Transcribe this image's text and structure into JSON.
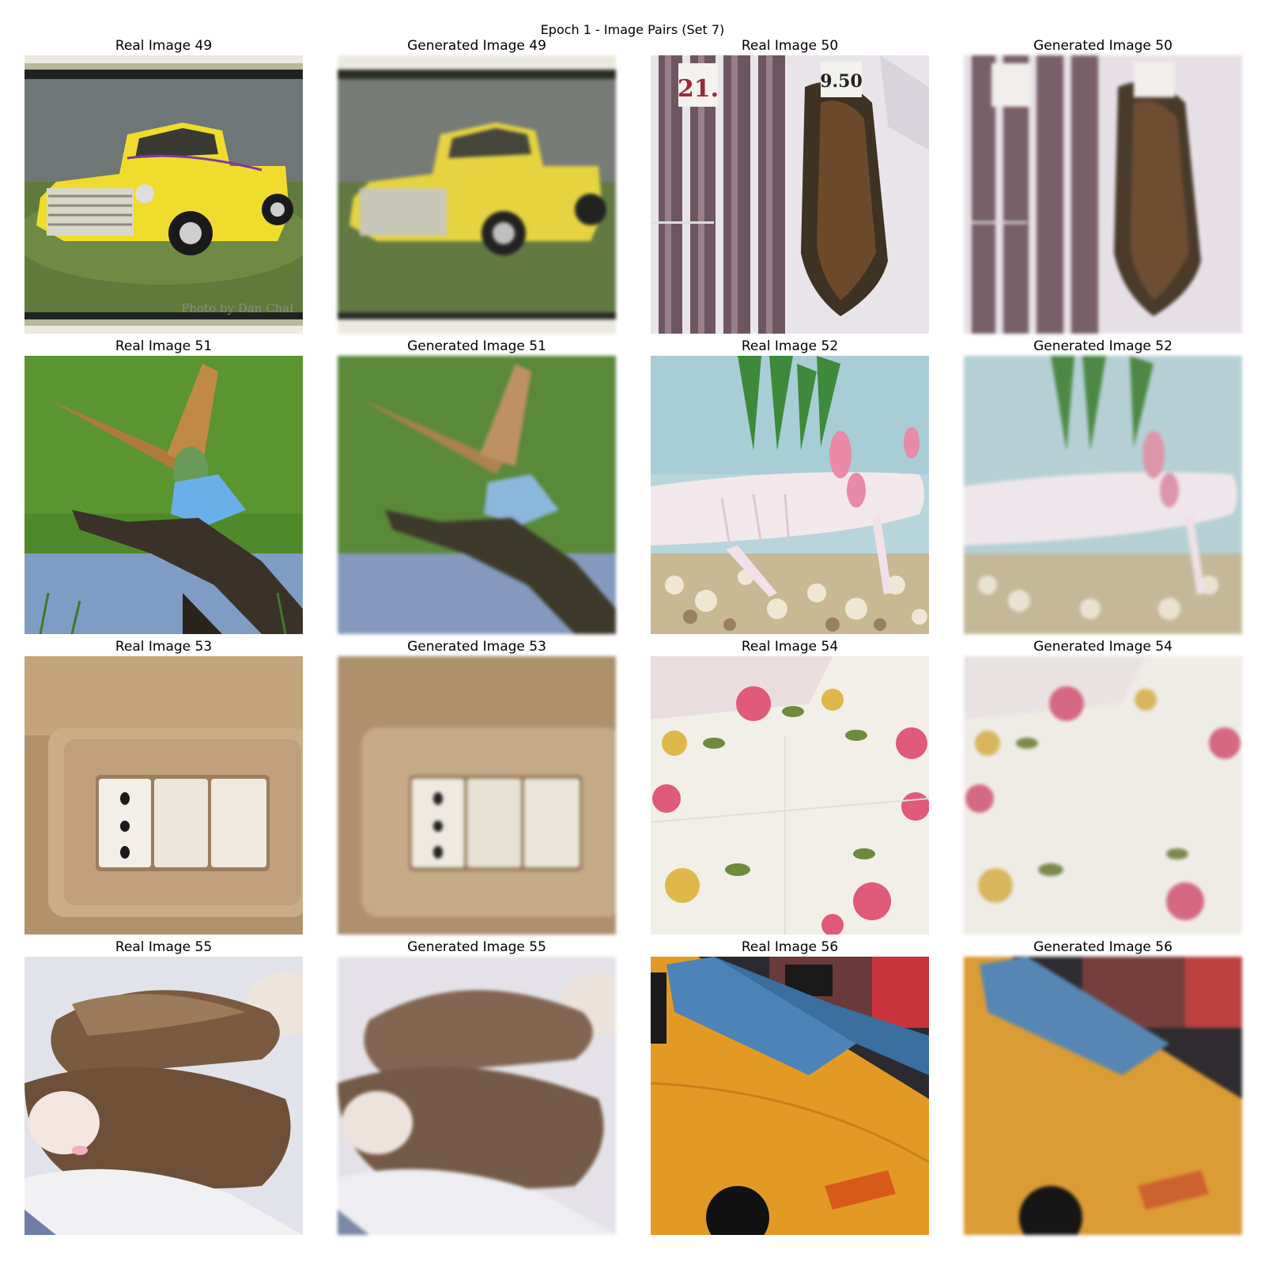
{
  "figure": {
    "title": "Epoch 1 - Image Pairs (Set 7)"
  },
  "pairs": [
    {
      "real_title": "Real Image 49",
      "gen_title": "Generated Image 49",
      "subject": "yellow vintage pickup truck on grass",
      "watermark": "Photo by Dan Chal"
    },
    {
      "real_title": "Real Image 50",
      "gen_title": "Generated Image 50",
      "subject": "smoked fish and eels at market",
      "price_tags": [
        "21.",
        "9.50"
      ]
    },
    {
      "real_title": "Real Image 51",
      "gen_title": "Generated Image 51",
      "subject": "bee-eater bird landing on branch"
    },
    {
      "real_title": "Real Image 52",
      "gen_title": "Generated Image 52",
      "subject": "white axolotl in aquarium"
    },
    {
      "real_title": "Real Image 53",
      "gen_title": "Generated Image 53",
      "subject": "beige wall switch and outlet plate"
    },
    {
      "real_title": "Real Image 54",
      "gen_title": "Generated Image 54",
      "subject": "floral handkerchief with roses"
    },
    {
      "real_title": "Real Image 55",
      "gen_title": "Generated Image 55",
      "subject": "two sleeping ferrets"
    },
    {
      "real_title": "Real Image 56",
      "gen_title": "Generated Image 56",
      "subject": "yellow taxi cab"
    }
  ]
}
